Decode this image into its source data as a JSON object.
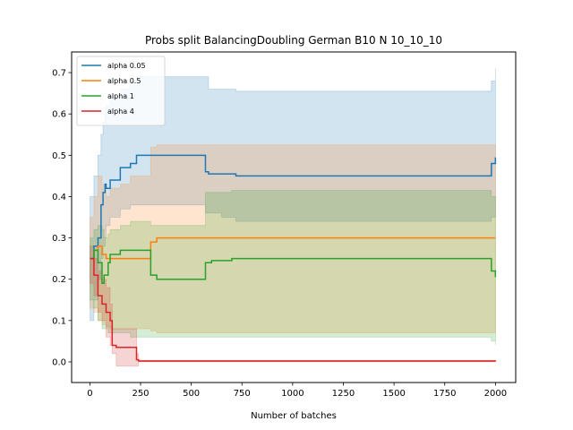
{
  "chart_data": {
    "type": "line",
    "title": "Probs split BalancingDoubling German B10 N 10_10_10",
    "xlabel": "Number of batches",
    "ylabel": "",
    "xlim": [
      -90,
      2100
    ],
    "ylim": [
      -0.05,
      0.75
    ],
    "xticks": [
      0,
      250,
      500,
      750,
      1000,
      1250,
      1500,
      1750,
      2000
    ],
    "xtick_labels": [
      "0",
      "250",
      "500",
      "750",
      "1000",
      "1250",
      "1500",
      "1750",
      "2000"
    ],
    "yticks": [
      0.0,
      0.1,
      0.2,
      0.3,
      0.4,
      0.5,
      0.6,
      0.7
    ],
    "ytick_labels": [
      "0.0",
      "0.1",
      "0.2",
      "0.3",
      "0.4",
      "0.5",
      "0.6",
      "0.7"
    ],
    "grid": false,
    "legend_position": "top-left",
    "series": [
      {
        "name": "alpha 0.05",
        "color": "#1f77b4",
        "step": true,
        "x": [
          1,
          20,
          40,
          55,
          65,
          75,
          80,
          100,
          150,
          200,
          230,
          570,
          585,
          650,
          720,
          1980,
          2000
        ],
        "y": [
          0.25,
          0.28,
          0.3,
          0.38,
          0.41,
          0.43,
          0.42,
          0.44,
          0.47,
          0.48,
          0.5,
          0.46,
          0.455,
          0.455,
          0.45,
          0.48,
          0.495
        ],
        "band_low": [
          0.1,
          0.15,
          0.2,
          0.25,
          0.28,
          0.3,
          0.33,
          0.35,
          0.37,
          0.38,
          0.38,
          0.36,
          0.36,
          0.35,
          0.34,
          0.35,
          0.36
        ],
        "band_high": [
          0.4,
          0.45,
          0.5,
          0.55,
          0.58,
          0.6,
          0.62,
          0.64,
          0.66,
          0.68,
          0.69,
          0.69,
          0.66,
          0.66,
          0.655,
          0.68,
          0.71
        ]
      },
      {
        "name": "alpha 0.5",
        "color": "#ff7f0e",
        "step": true,
        "x": [
          1,
          20,
          40,
          60,
          80,
          100,
          150,
          200,
          300,
          330,
          2000
        ],
        "y": [
          0.25,
          0.27,
          0.28,
          0.26,
          0.25,
          0.25,
          0.25,
          0.25,
          0.29,
          0.3,
          0.3
        ],
        "band_low": [
          0.13,
          0.12,
          0.1,
          0.09,
          0.085,
          0.08,
          0.08,
          0.08,
          0.075,
          0.07,
          0.07
        ],
        "band_high": [
          0.35,
          0.4,
          0.45,
          0.43,
          0.4,
          0.42,
          0.43,
          0.45,
          0.52,
          0.525,
          0.525
        ]
      },
      {
        "name": "alpha 1",
        "color": "#2ca02c",
        "step": true,
        "x": [
          1,
          20,
          40,
          60,
          70,
          90,
          100,
          150,
          200,
          300,
          330,
          570,
          600,
          700,
          1980,
          2000
        ],
        "y": [
          0.25,
          0.27,
          0.24,
          0.19,
          0.21,
          0.24,
          0.26,
          0.27,
          0.27,
          0.21,
          0.2,
          0.24,
          0.245,
          0.25,
          0.22,
          0.205
        ],
        "band_low": [
          0.15,
          0.13,
          0.1,
          0.08,
          0.08,
          0.07,
          0.07,
          0.07,
          0.06,
          0.06,
          0.06,
          0.06,
          0.06,
          0.06,
          0.05,
          0.04
        ],
        "band_high": [
          0.3,
          0.32,
          0.33,
          0.32,
          0.3,
          0.31,
          0.32,
          0.33,
          0.34,
          0.33,
          0.33,
          0.41,
          0.41,
          0.415,
          0.4,
          0.37
        ]
      },
      {
        "name": "alpha 4",
        "color": "#d62728",
        "step": true,
        "x": [
          1,
          20,
          40,
          60,
          80,
          100,
          110,
          130,
          230,
          240,
          2000
        ],
        "y": [
          0.25,
          0.21,
          0.16,
          0.14,
          0.12,
          0.1,
          0.04,
          0.035,
          0.005,
          0.002,
          0.001
        ],
        "band_low": [
          0.19,
          0.16,
          0.12,
          0.1,
          0.06,
          0.04,
          0.02,
          -0.01,
          -0.01,
          0.0,
          0.0
        ],
        "band_high": [
          0.28,
          0.25,
          0.22,
          0.2,
          0.18,
          0.14,
          0.08,
          0.08,
          0.02,
          0.004,
          0.003
        ]
      }
    ]
  }
}
